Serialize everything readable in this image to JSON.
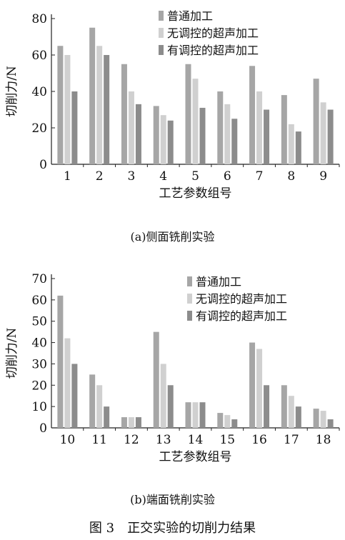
{
  "figure_caption": "图 3　正交实验的切削力结果",
  "colors": {
    "series": [
      "#a6a6a6",
      "#d0d0d0",
      "#8c8c8c"
    ],
    "axis": "#222222"
  },
  "chart_data": [
    {
      "type": "bar",
      "caption": "(a)侧面铣削实验",
      "xlabel": "工艺参数组号",
      "ylabel": "切削力/N",
      "ylim": [
        0,
        80
      ],
      "yticks": [
        0,
        20,
        40,
        60,
        80
      ],
      "grid": false,
      "legend_position": "top-right",
      "categories": [
        "1",
        "2",
        "3",
        "4",
        "5",
        "6",
        "7",
        "8",
        "9"
      ],
      "series": [
        {
          "name": "普通加工",
          "values": [
            65,
            75,
            55,
            32,
            55,
            40,
            54,
            38,
            47
          ]
        },
        {
          "name": "无调控的超声加工",
          "values": [
            60,
            65,
            40,
            27,
            47,
            33,
            40,
            22,
            34
          ]
        },
        {
          "name": "有调控的超声加工",
          "values": [
            40,
            60,
            33,
            24,
            31,
            25,
            30,
            18,
            30
          ]
        }
      ]
    },
    {
      "type": "bar",
      "caption": "(b)端面铣削实验",
      "xlabel": "工艺参数组号",
      "ylabel": "切削力/N",
      "ylim": [
        0,
        70
      ],
      "yticks": [
        0,
        10,
        20,
        30,
        40,
        50,
        60,
        70
      ],
      "grid": false,
      "legend_position": "top-right",
      "categories": [
        "10",
        "11",
        "12",
        "13",
        "14",
        "15",
        "16",
        "17",
        "18"
      ],
      "series": [
        {
          "name": "普通加工",
          "values": [
            62,
            25,
            5,
            45,
            12,
            7,
            40,
            20,
            9
          ]
        },
        {
          "name": "无调控的超声加工",
          "values": [
            42,
            20,
            5,
            30,
            12,
            6,
            37,
            15,
            8
          ]
        },
        {
          "name": "有调控的超声加工",
          "values": [
            30,
            10,
            5,
            20,
            12,
            4,
            20,
            10,
            4
          ]
        }
      ]
    }
  ]
}
